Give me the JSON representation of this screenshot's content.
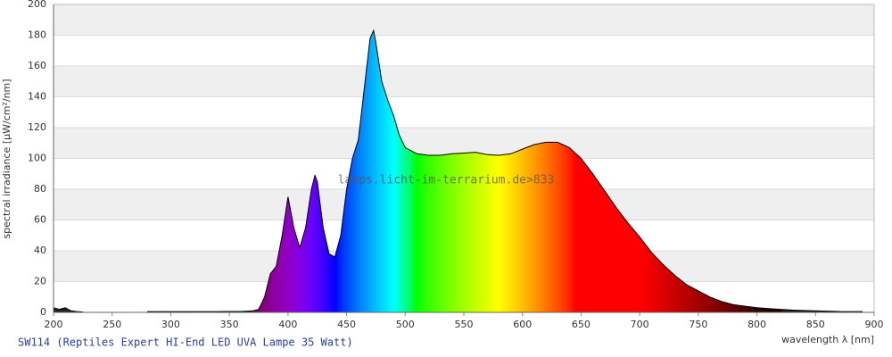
{
  "chart_data": {
    "type": "area",
    "title": "SW114 (Reptiles Expert HI-End LED UVA Lampe 35 Watt)",
    "x_label": "wavelength λ [nm]",
    "y_label": "spectral irradiance [µW/cm²/nm]",
    "watermark": "lamps.licht-im-terrarium.de>833",
    "x": [
      200,
      205,
      210,
      215,
      220,
      225,
      230,
      240,
      250,
      260,
      270,
      280,
      300,
      320,
      340,
      360,
      370,
      375,
      380,
      385,
      390,
      395,
      400,
      405,
      410,
      415,
      420,
      423,
      425,
      430,
      435,
      440,
      445,
      450,
      455,
      460,
      465,
      470,
      473,
      475,
      480,
      485,
      490,
      495,
      500,
      510,
      520,
      530,
      540,
      550,
      560,
      570,
      580,
      590,
      600,
      610,
      620,
      630,
      640,
      650,
      660,
      670,
      680,
      690,
      700,
      710,
      720,
      730,
      740,
      750,
      760,
      770,
      780,
      790,
      800,
      810,
      820,
      830,
      840,
      850,
      860,
      870,
      880,
      890
    ],
    "values": [
      3,
      2,
      3,
      1,
      0.5,
      0.3,
      null,
      null,
      null,
      null,
      null,
      0.5,
      0.5,
      0.5,
      0.5,
      0.6,
      1,
      2,
      10,
      25,
      30,
      50,
      75,
      55,
      42,
      55,
      80,
      89,
      85,
      55,
      38,
      36,
      50,
      80,
      100,
      112,
      145,
      178,
      183,
      175,
      150,
      138,
      128,
      115,
      107,
      103,
      102,
      102,
      103,
      103.5,
      104,
      102.5,
      102,
      103,
      106,
      109,
      110.5,
      110.5,
      107,
      100,
      90,
      79,
      68,
      58,
      49,
      39,
      31,
      24,
      18,
      14,
      10,
      7,
      5,
      4,
      3,
      2.5,
      2,
      1.5,
      1.2,
      1,
      0.8,
      0.6,
      0.5,
      0.5
    ],
    "xlim": [
      200,
      900
    ],
    "ylim": [
      0,
      200
    ],
    "xticks": [
      200,
      250,
      300,
      350,
      400,
      450,
      500,
      550,
      600,
      650,
      700,
      750,
      800,
      850,
      900
    ],
    "yticks": [
      0,
      20,
      40,
      60,
      80,
      100,
      120,
      140,
      160,
      180,
      200
    ],
    "grid": true,
    "line_color": "#000000",
    "fill": "spectrum"
  }
}
